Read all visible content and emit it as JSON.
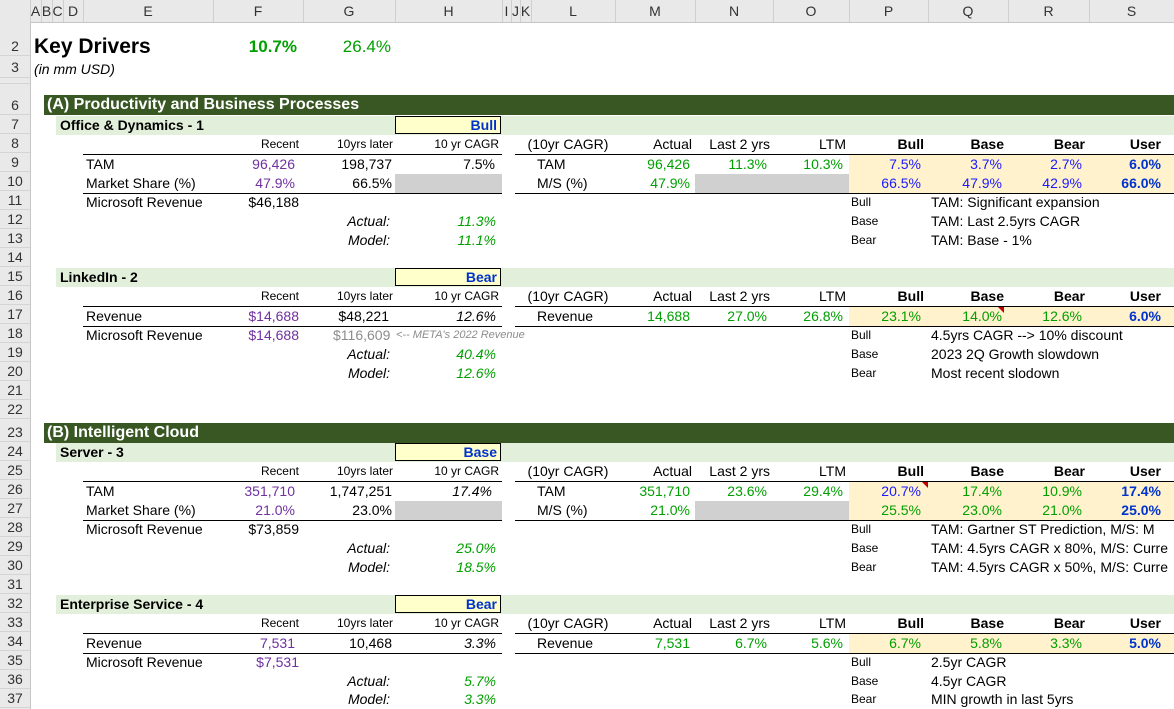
{
  "columns": [
    "A",
    "B",
    "C",
    "D",
    "E",
    "F",
    "G",
    "H",
    "I",
    "J",
    "K",
    "L",
    "M",
    "N",
    "O",
    "P",
    "Q",
    "R",
    "S"
  ],
  "rows": [
    "2",
    "3",
    "",
    "6",
    "7",
    "8",
    "9",
    "10",
    "11",
    "12",
    "13",
    "14",
    "15",
    "16",
    "17",
    "18",
    "19",
    "20",
    "21",
    "22",
    "23",
    "24",
    "25",
    "26",
    "27",
    "28",
    "29",
    "30",
    "31",
    "32",
    "33",
    "34",
    "35",
    "36",
    "37"
  ],
  "title": "Key Drivers",
  "subtitle": "(in mm USD)",
  "top_pct1": "10.7%",
  "top_pct2": "26.4%",
  "section_a": "(A) Productivity and Business Processes",
  "section_b": "(B) Intelligent Cloud",
  "headers": {
    "recent": "Recent",
    "later": "10yrs later",
    "cagr": "10 yr CAGR",
    "cagr10": "(10yr CAGR)",
    "actual": "Actual",
    "last2": "Last 2 yrs",
    "ltm": "LTM",
    "bull": "Bull",
    "base": "Base",
    "bear": "Bear",
    "user": "User",
    "actual_lbl": "Actual:",
    "model_lbl": "Model:"
  },
  "blocks": [
    {
      "name": "Office & Dynamics - 1",
      "scenario": "Bull",
      "row1": {
        "label": "TAM",
        "recent": "96,426",
        "later": "198,737",
        "cagr": "7.5%",
        "rlabel": "TAM",
        "actual": "96,426",
        "last2": "11.3%",
        "ltm": "10.3%",
        "bull": "7.5%",
        "base": "3.7%",
        "bear": "2.7%",
        "user": "6.0%"
      },
      "row2": {
        "label": "Market Share (%)",
        "recent": "47.9%",
        "later": "66.5%",
        "rlabel": "M/S (%)",
        "actual": "47.9%",
        "bull": "66.5%",
        "base": "47.9%",
        "bear": "42.9%",
        "user": "66.0%"
      },
      "rev_label": "Microsoft Revenue",
      "rev": "$46,188",
      "actual": "11.3%",
      "model": "11.1%",
      "notes": [
        {
          "k": "Bull",
          "v": "TAM: Significant expansion"
        },
        {
          "k": "Base",
          "v": "TAM: Last 2.5yrs CAGR"
        },
        {
          "k": "Bear",
          "v": "TAM: Base - 1%"
        }
      ]
    },
    {
      "name": "LinkedIn - 2",
      "scenario": "Bear",
      "row1": {
        "label": "Revenue",
        "recent": "$14,688",
        "later": "$48,221",
        "cagr": "12.6%",
        "rlabel": "Revenue",
        "actual": "14,688",
        "last2": "27.0%",
        "ltm": "26.8%",
        "bull": "23.1%",
        "base": "14.0%",
        "bear": "12.6%",
        "user": "6.0%"
      },
      "rev_label": "Microsoft Revenue",
      "rev": "$14,688",
      "rev_later": "$116,609",
      "rev_note": "<-- META's 2022 Revenue",
      "actual": "40.4%",
      "model": "12.6%",
      "notes": [
        {
          "k": "Bull",
          "v": "4.5yrs CAGR  -->  10% discount"
        },
        {
          "k": "Base",
          "v": "2023 2Q Growth slowdown"
        },
        {
          "k": "Bear",
          "v": "Most recent slodown"
        }
      ]
    },
    {
      "name": "Server - 3",
      "scenario": "Base",
      "row1": {
        "label": "TAM",
        "recent": "351,710",
        "later": "1,747,251",
        "cagr": "17.4%",
        "rlabel": "TAM",
        "actual": "351,710",
        "last2": "23.6%",
        "ltm": "29.4%",
        "bull": "20.7%",
        "base": "17.4%",
        "bear": "10.9%",
        "user": "17.4%"
      },
      "row2": {
        "label": "Market Share (%)",
        "recent": "21.0%",
        "later": "23.0%",
        "rlabel": "M/S (%)",
        "actual": "21.0%",
        "bull": "25.5%",
        "base": "23.0%",
        "bear": "21.0%",
        "user": "25.0%"
      },
      "rev_label": "Microsoft Revenue",
      "rev": "$73,859",
      "actual": "25.0%",
      "model": "18.5%",
      "notes": [
        {
          "k": "Bull",
          "v": "TAM:  Gartner ST Prediction, M/S: M"
        },
        {
          "k": "Base",
          "v": "TAM: 4.5yrs CAGR x 80%, M/S: Curre"
        },
        {
          "k": "Bear",
          "v": "TAM: 4.5yrs CAGR x 50%, M/S: Curre"
        }
      ]
    },
    {
      "name": "Enterprise Service - 4",
      "scenario": "Bear",
      "row1": {
        "label": "Revenue",
        "recent": "7,531",
        "later": "10,468",
        "cagr": "3.3%",
        "rlabel": "Revenue",
        "actual": "7,531",
        "last2": "6.7%",
        "ltm": "5.6%",
        "bull": "6.7%",
        "base": "5.8%",
        "bear": "3.3%",
        "user": "5.0%"
      },
      "rev_label": "Microsoft Revenue",
      "rev": "$7,531",
      "actual": "5.7%",
      "model": "3.3%",
      "notes": [
        {
          "k": "Bull",
          "v": "2.5yr CAGR"
        },
        {
          "k": "Base",
          "v": "4.5yr CAGR"
        },
        {
          "k": "Bear",
          "v": "MIN growth in last 5yrs"
        }
      ]
    }
  ]
}
